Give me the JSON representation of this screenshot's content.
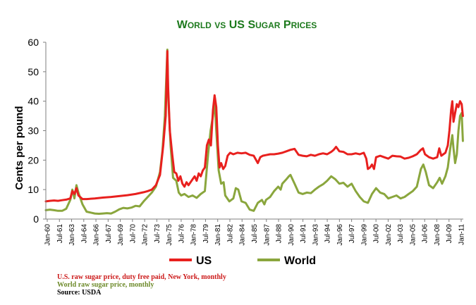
{
  "chart_data": {
    "type": "line",
    "title": "World vs US Sugar Prices",
    "ylabel": "Cents per pound",
    "xlabel": "",
    "ylim": [
      0,
      60
    ],
    "yticks": [
      0,
      10,
      20,
      30,
      40,
      50,
      60
    ],
    "grid": false,
    "legend": "bottom",
    "x_ticks": [
      "Jan-60",
      "Jul-61",
      "Jan-63",
      "Jul-64",
      "Jan-66",
      "Jul-67",
      "Jan-69",
      "Jul-70",
      "Jan-72",
      "Jul-73",
      "Jan-75",
      "Jul-76",
      "Jan-78",
      "Jul-79",
      "Jan-81",
      "Jul-82",
      "Jan-84",
      "Jul-85",
      "Jan-87",
      "Jul-88",
      "Jan-90",
      "Jul-91",
      "Jan-93",
      "Jul-94",
      "Jan-96",
      "Jul-97",
      "Jan-99",
      "Jul-00",
      "Jan-02",
      "Jul-03",
      "Jan-05",
      "Jul-06",
      "Jan-08",
      "Jul-09",
      "Jan-11"
    ],
    "x_range": [
      1960.0,
      2011.2
    ],
    "series": [
      {
        "name": "US",
        "color": "#e8201e",
        "points": [
          [
            1960.0,
            6.0
          ],
          [
            1960.5,
            6.2
          ],
          [
            1961.0,
            6.3
          ],
          [
            1961.5,
            6.2
          ],
          [
            1962.0,
            6.4
          ],
          [
            1962.5,
            6.6
          ],
          [
            1963.0,
            7.0
          ],
          [
            1963.25,
            9.5
          ],
          [
            1963.5,
            8.5
          ],
          [
            1963.75,
            10.5
          ],
          [
            1964.0,
            8.0
          ],
          [
            1964.5,
            6.8
          ],
          [
            1965.0,
            6.8
          ],
          [
            1966.0,
            7.0
          ],
          [
            1967.0,
            7.3
          ],
          [
            1968.0,
            7.5
          ],
          [
            1969.0,
            7.8
          ],
          [
            1970.0,
            8.1
          ],
          [
            1971.0,
            8.5
          ],
          [
            1972.0,
            9.1
          ],
          [
            1972.5,
            9.5
          ],
          [
            1973.0,
            10.0
          ],
          [
            1973.5,
            11.5
          ],
          [
            1974.0,
            15.0
          ],
          [
            1974.4,
            25.0
          ],
          [
            1974.7,
            35.0
          ],
          [
            1974.9,
            57.0
          ],
          [
            1975.0,
            45.0
          ],
          [
            1975.2,
            30.0
          ],
          [
            1975.5,
            22.0
          ],
          [
            1975.75,
            16.0
          ],
          [
            1976.0,
            15.5
          ],
          [
            1976.25,
            13.0
          ],
          [
            1976.5,
            14.5
          ],
          [
            1976.75,
            12.0
          ],
          [
            1977.0,
            11.0
          ],
          [
            1977.25,
            12.5
          ],
          [
            1977.5,
            11.5
          ],
          [
            1978.0,
            13.5
          ],
          [
            1978.25,
            14.5
          ],
          [
            1978.5,
            13.0
          ],
          [
            1978.75,
            15.5
          ],
          [
            1979.0,
            14.5
          ],
          [
            1979.25,
            16.5
          ],
          [
            1979.5,
            17.5
          ],
          [
            1979.75,
            25.0
          ],
          [
            1980.0,
            27.0
          ],
          [
            1980.25,
            25.0
          ],
          [
            1980.5,
            37.0
          ],
          [
            1980.7,
            42.0
          ],
          [
            1980.9,
            38.0
          ],
          [
            1981.1,
            25.0
          ],
          [
            1981.3,
            17.5
          ],
          [
            1981.5,
            19.0
          ],
          [
            1981.75,
            17.0
          ],
          [
            1982.0,
            18.0
          ],
          [
            1982.3,
            21.5
          ],
          [
            1982.6,
            22.5
          ],
          [
            1983.0,
            22.0
          ],
          [
            1983.5,
            22.5
          ],
          [
            1984.0,
            22.3
          ],
          [
            1984.5,
            22.5
          ],
          [
            1985.0,
            21.8
          ],
          [
            1985.5,
            21.5
          ],
          [
            1986.0,
            19.0
          ],
          [
            1986.3,
            21.0
          ],
          [
            1986.6,
            21.5
          ],
          [
            1987.0,
            21.7
          ],
          [
            1987.5,
            22.0
          ],
          [
            1988.0,
            22.0
          ],
          [
            1988.5,
            22.2
          ],
          [
            1989.0,
            22.5
          ],
          [
            1989.5,
            23.0
          ],
          [
            1990.0,
            23.5
          ],
          [
            1990.5,
            23.8
          ],
          [
            1991.0,
            21.8
          ],
          [
            1991.5,
            21.5
          ],
          [
            1992.0,
            21.3
          ],
          [
            1992.5,
            21.8
          ],
          [
            1993.0,
            21.5
          ],
          [
            1993.5,
            22.0
          ],
          [
            1994.0,
            22.3
          ],
          [
            1994.5,
            22.0
          ],
          [
            1995.0,
            22.8
          ],
          [
            1995.3,
            23.5
          ],
          [
            1995.6,
            24.5
          ],
          [
            1996.0,
            23.0
          ],
          [
            1996.5,
            22.8
          ],
          [
            1997.0,
            22.0
          ],
          [
            1997.5,
            22.0
          ],
          [
            1998.0,
            22.3
          ],
          [
            1998.5,
            22.0
          ],
          [
            1999.0,
            22.5
          ],
          [
            1999.3,
            20.5
          ],
          [
            1999.5,
            17.0
          ],
          [
            1999.75,
            17.5
          ],
          [
            2000.0,
            18.5
          ],
          [
            2000.25,
            17.0
          ],
          [
            2000.5,
            21.0
          ],
          [
            2001.0,
            21.5
          ],
          [
            2001.5,
            21.0
          ],
          [
            2002.0,
            20.5
          ],
          [
            2002.5,
            21.5
          ],
          [
            2003.0,
            21.3
          ],
          [
            2003.5,
            21.2
          ],
          [
            2004.0,
            20.5
          ],
          [
            2004.5,
            20.8
          ],
          [
            2005.0,
            21.3
          ],
          [
            2005.5,
            22.0
          ],
          [
            2006.0,
            23.5
          ],
          [
            2006.25,
            24.0
          ],
          [
            2006.5,
            22.0
          ],
          [
            2007.0,
            21.0
          ],
          [
            2007.5,
            20.5
          ],
          [
            2008.0,
            21.0
          ],
          [
            2008.25,
            24.0
          ],
          [
            2008.5,
            21.5
          ],
          [
            2009.0,
            22.5
          ],
          [
            2009.3,
            25.0
          ],
          [
            2009.5,
            30.0
          ],
          [
            2009.7,
            37.0
          ],
          [
            2009.85,
            40.0
          ],
          [
            2010.0,
            33.0
          ],
          [
            2010.2,
            36.0
          ],
          [
            2010.4,
            39.0
          ],
          [
            2010.6,
            38.0
          ],
          [
            2010.8,
            40.0
          ],
          [
            2011.0,
            39.0
          ],
          [
            2011.15,
            35.0
          ]
        ]
      },
      {
        "name": "World",
        "color": "#8aa63d",
        "points": [
          [
            1960.0,
            3.0
          ],
          [
            1960.5,
            3.2
          ],
          [
            1961.0,
            3.0
          ],
          [
            1961.5,
            2.8
          ],
          [
            1962.0,
            2.8
          ],
          [
            1962.5,
            3.5
          ],
          [
            1963.0,
            6.5
          ],
          [
            1963.25,
            10.0
          ],
          [
            1963.5,
            7.0
          ],
          [
            1963.75,
            11.5
          ],
          [
            1964.0,
            9.0
          ],
          [
            1964.5,
            5.0
          ],
          [
            1965.0,
            2.5
          ],
          [
            1965.5,
            2.2
          ],
          [
            1966.0,
            1.9
          ],
          [
            1966.5,
            1.8
          ],
          [
            1967.0,
            1.9
          ],
          [
            1967.5,
            2.0
          ],
          [
            1968.0,
            1.9
          ],
          [
            1968.5,
            2.5
          ],
          [
            1969.0,
            3.3
          ],
          [
            1969.5,
            3.8
          ],
          [
            1970.0,
            3.6
          ],
          [
            1970.5,
            3.9
          ],
          [
            1971.0,
            4.5
          ],
          [
            1971.5,
            4.3
          ],
          [
            1972.0,
            6.0
          ],
          [
            1972.5,
            7.5
          ],
          [
            1973.0,
            9.0
          ],
          [
            1973.5,
            11.0
          ],
          [
            1974.0,
            16.0
          ],
          [
            1974.3,
            23.0
          ],
          [
            1974.6,
            35.0
          ],
          [
            1974.9,
            57.5
          ],
          [
            1975.0,
            42.0
          ],
          [
            1975.3,
            25.0
          ],
          [
            1975.6,
            14.0
          ],
          [
            1976.0,
            13.0
          ],
          [
            1976.3,
            9.0
          ],
          [
            1976.6,
            8.0
          ],
          [
            1977.0,
            8.5
          ],
          [
            1977.5,
            7.5
          ],
          [
            1978.0,
            8.0
          ],
          [
            1978.5,
            7.2
          ],
          [
            1979.0,
            8.5
          ],
          [
            1979.5,
            9.5
          ],
          [
            1979.9,
            22.0
          ],
          [
            1980.2,
            30.0
          ],
          [
            1980.5,
            35.0
          ],
          [
            1980.7,
            40.5
          ],
          [
            1980.9,
            30.0
          ],
          [
            1981.2,
            16.5
          ],
          [
            1981.5,
            12.0
          ],
          [
            1981.8,
            12.5
          ],
          [
            1982.0,
            8.0
          ],
          [
            1982.5,
            6.0
          ],
          [
            1983.0,
            7.0
          ],
          [
            1983.3,
            10.5
          ],
          [
            1983.6,
            10.0
          ],
          [
            1984.0,
            6.0
          ],
          [
            1984.5,
            5.5
          ],
          [
            1985.0,
            3.2
          ],
          [
            1985.5,
            2.8
          ],
          [
            1986.0,
            5.5
          ],
          [
            1986.5,
            6.5
          ],
          [
            1986.8,
            5.0
          ],
          [
            1987.0,
            6.5
          ],
          [
            1987.5,
            7.5
          ],
          [
            1988.0,
            9.5
          ],
          [
            1988.5,
            11.0
          ],
          [
            1988.8,
            10.0
          ],
          [
            1989.0,
            12.0
          ],
          [
            1989.5,
            13.5
          ],
          [
            1989.8,
            14.5
          ],
          [
            1990.0,
            15.0
          ],
          [
            1990.5,
            12.0
          ],
          [
            1991.0,
            9.0
          ],
          [
            1991.5,
            8.5
          ],
          [
            1992.0,
            9.0
          ],
          [
            1992.5,
            8.8
          ],
          [
            1993.0,
            10.0
          ],
          [
            1993.5,
            11.0
          ],
          [
            1994.0,
            11.8
          ],
          [
            1994.5,
            13.0
          ],
          [
            1995.0,
            14.5
          ],
          [
            1995.5,
            13.5
          ],
          [
            1996.0,
            12.0
          ],
          [
            1996.5,
            12.3
          ],
          [
            1997.0,
            11.0
          ],
          [
            1997.5,
            12.0
          ],
          [
            1998.0,
            9.5
          ],
          [
            1998.5,
            7.5
          ],
          [
            1999.0,
            6.0
          ],
          [
            1999.5,
            5.5
          ],
          [
            2000.0,
            8.5
          ],
          [
            2000.5,
            10.5
          ],
          [
            2001.0,
            9.0
          ],
          [
            2001.5,
            8.5
          ],
          [
            2002.0,
            7.0
          ],
          [
            2002.5,
            7.5
          ],
          [
            2003.0,
            8.0
          ],
          [
            2003.5,
            7.0
          ],
          [
            2004.0,
            7.5
          ],
          [
            2004.5,
            8.5
          ],
          [
            2005.0,
            9.5
          ],
          [
            2005.5,
            11.0
          ],
          [
            2006.0,
            17.0
          ],
          [
            2006.3,
            18.5
          ],
          [
            2006.6,
            16.0
          ],
          [
            2007.0,
            11.5
          ],
          [
            2007.5,
            10.5
          ],
          [
            2008.0,
            12.5
          ],
          [
            2008.3,
            14.0
          ],
          [
            2008.6,
            12.0
          ],
          [
            2009.0,
            14.5
          ],
          [
            2009.3,
            17.5
          ],
          [
            2009.6,
            24.0
          ],
          [
            2009.85,
            28.5
          ],
          [
            2010.0,
            24.0
          ],
          [
            2010.2,
            19.0
          ],
          [
            2010.4,
            22.0
          ],
          [
            2010.6,
            30.0
          ],
          [
            2010.8,
            35.0
          ],
          [
            2011.0,
            36.0
          ],
          [
            2011.15,
            26.5
          ]
        ]
      }
    ]
  },
  "notes": [
    {
      "text": "U.S. raw sugar price, duty free paid, New York, monthly",
      "color": "#cc1a1a"
    },
    {
      "text": "World raw sugar price, monthly",
      "color": "#6d8a2a"
    },
    {
      "text": "Source: USDA",
      "color": "#000000"
    }
  ]
}
